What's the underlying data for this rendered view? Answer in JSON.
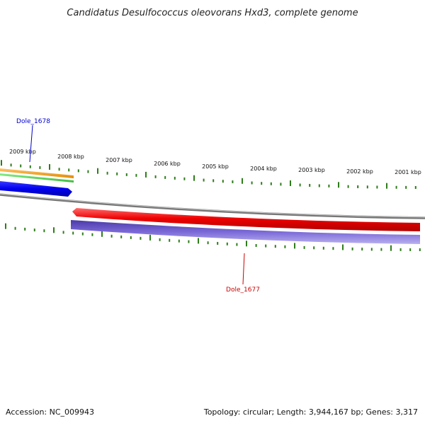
{
  "title": "Candidatus Desulfococcus oleovorans Hxd3, complete genome",
  "footer": {
    "accession": "Accession: NC_009943",
    "summary": "Topology: circular; Length: 3,944,167 bp; Genes: 3,317"
  },
  "scale_labels": [
    "2009 kbp",
    "2008 kbp",
    "2007 kbp",
    "2006 kbp",
    "2005 kbp",
    "2004 kbp",
    "2003 kbp",
    "2002 kbp",
    "2001 kbp"
  ],
  "genes": [
    {
      "label": "Dole_1678",
      "color": "#0000cc",
      "strand": "forward"
    },
    {
      "label": "Dole_1677",
      "color": "#cc0000",
      "strand": "reverse"
    }
  ],
  "colors": {
    "backbone": "#888888",
    "ticks": "#2e7d1a",
    "orange_track": "#f59b1a",
    "green_track": "#5cd65c",
    "blue_gene": "#0000ee",
    "red_gene": "#ee0000",
    "purple_track": "#6a5acd"
  }
}
